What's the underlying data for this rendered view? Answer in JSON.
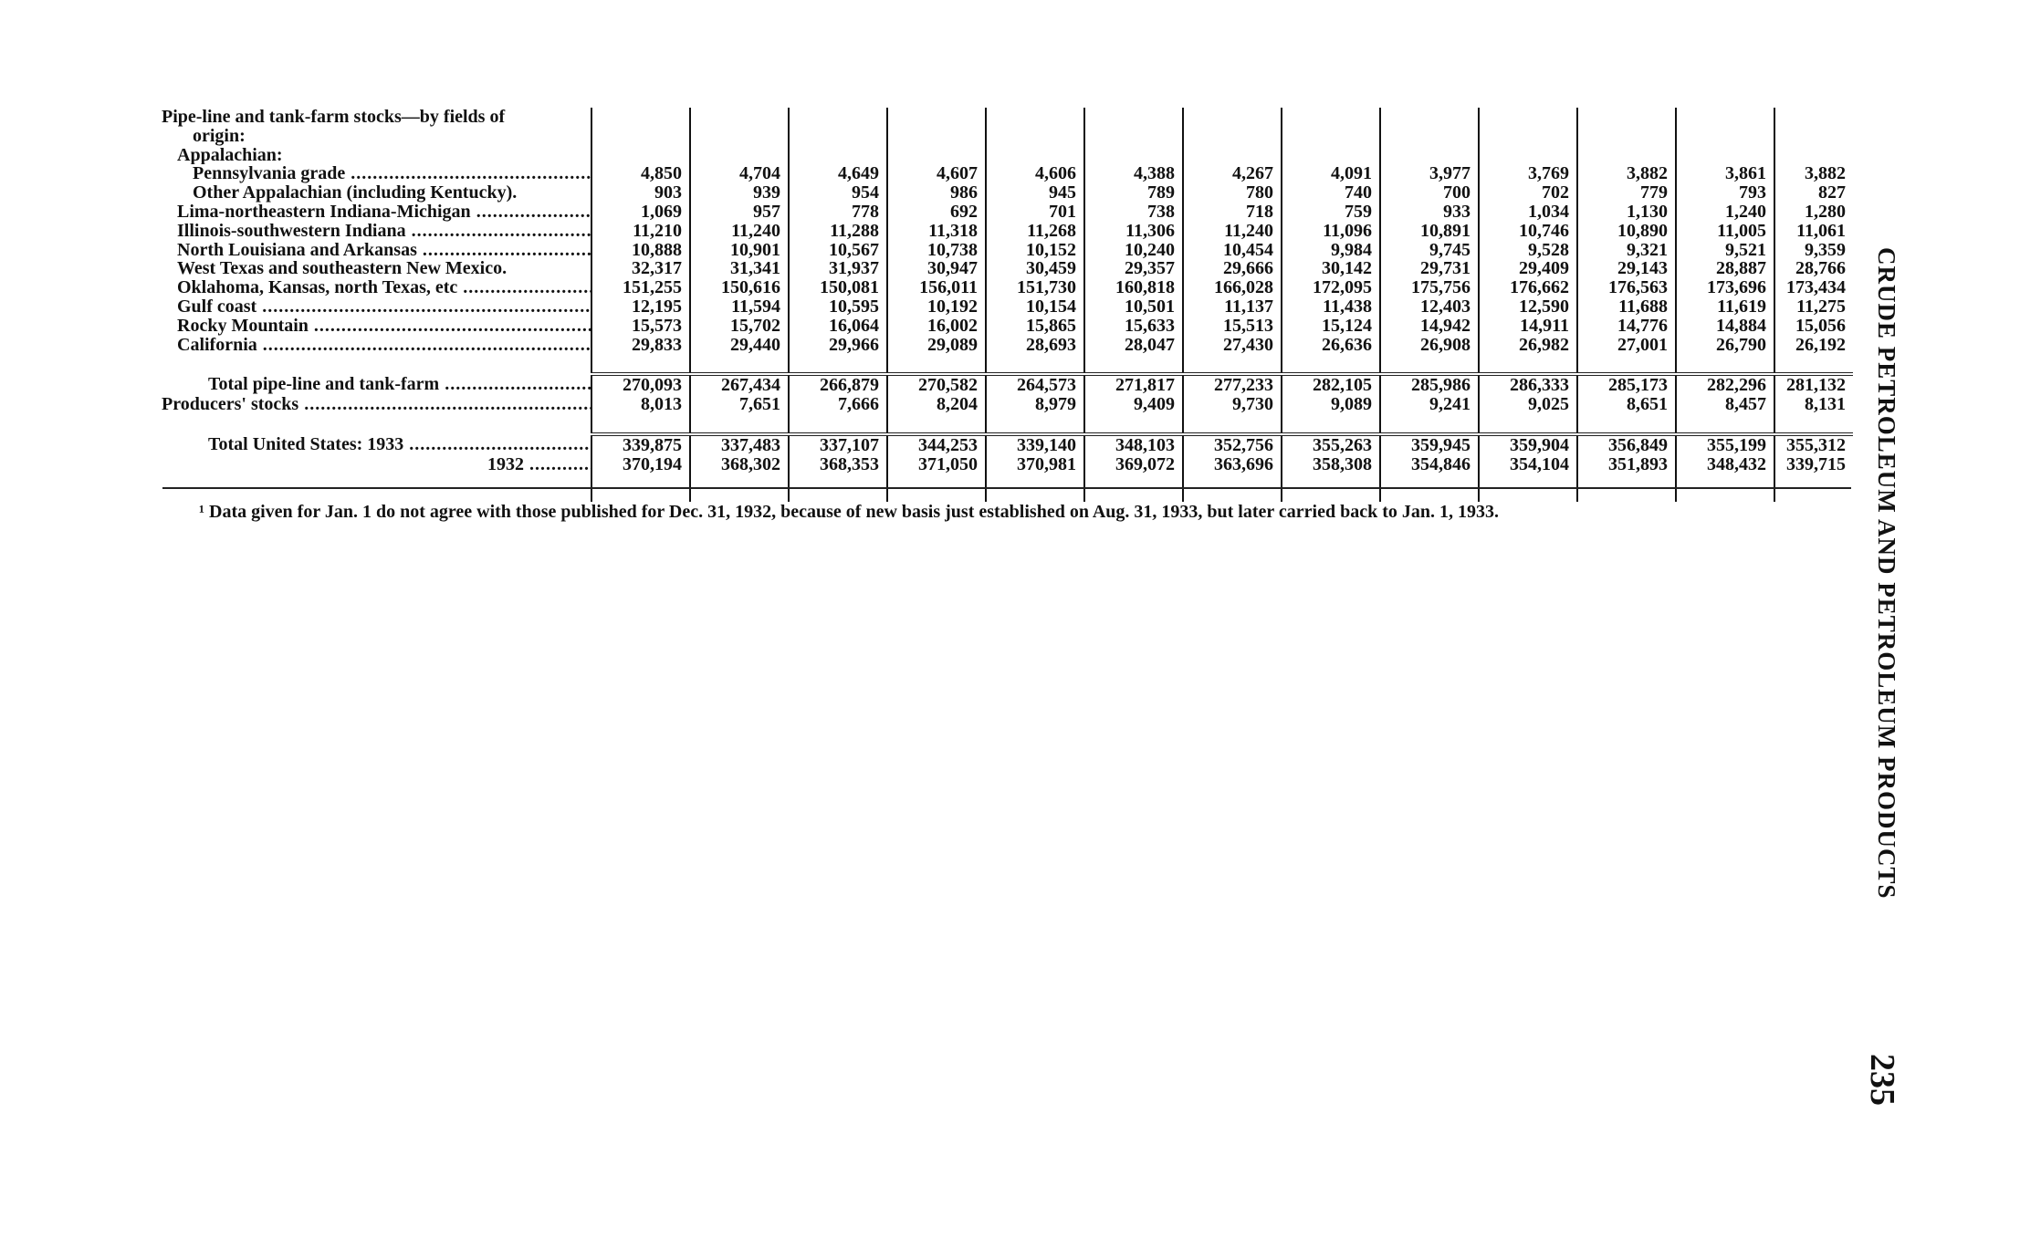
{
  "side_header": "CRUDE PETROLEUM AND PETROLEUM PRODUCTS",
  "page_number": "235",
  "table": {
    "header_rows": [
      {
        "label": "Pipe-line and tank-farm stocks—by fields of",
        "indent": 0
      },
      {
        "label": "origin:",
        "indent": 2
      },
      {
        "label": "Appalachian:",
        "indent": 1
      }
    ],
    "rows": [
      {
        "label": "Pennsylvania grade",
        "indent": 2,
        "values": [
          "4,850",
          "4,704",
          "4,649",
          "4,607",
          "4,606",
          "4,388",
          "4,267",
          "4,091",
          "3,977",
          "3,769",
          "3,882",
          "3,861",
          "3,882"
        ]
      },
      {
        "label": "Other Appalachian (including Kentucky).",
        "indent": 2,
        "values": [
          "903",
          "939",
          "954",
          "986",
          "945",
          "789",
          "780",
          "740",
          "700",
          "702",
          "779",
          "793",
          "827"
        ]
      },
      {
        "label": "Lima-northeastern Indiana-Michigan",
        "indent": 1,
        "values": [
          "1,069",
          "957",
          "778",
          "692",
          "701",
          "738",
          "718",
          "759",
          "933",
          "1,034",
          "1,130",
          "1,240",
          "1,280"
        ]
      },
      {
        "label": "Illinois-southwestern Indiana",
        "indent": 1,
        "values": [
          "11,210",
          "11,240",
          "11,288",
          "11,318",
          "11,268",
          "11,306",
          "11,240",
          "11,096",
          "10,891",
          "10,746",
          "10,890",
          "11,005",
          "11,061"
        ]
      },
      {
        "label": "North Louisiana and Arkansas",
        "indent": 1,
        "values": [
          "10,888",
          "10,901",
          "10,567",
          "10,738",
          "10,152",
          "10,240",
          "10,454",
          "9,984",
          "9,745",
          "9,528",
          "9,321",
          "9,521",
          "9,359"
        ]
      },
      {
        "label": "West Texas and southeastern New Mexico.",
        "indent": 1,
        "values": [
          "32,317",
          "31,341",
          "31,937",
          "30,947",
          "30,459",
          "29,357",
          "29,666",
          "30,142",
          "29,731",
          "29,409",
          "29,143",
          "28,887",
          "28,766"
        ]
      },
      {
        "label": "Oklahoma, Kansas, north Texas, etc",
        "indent": 1,
        "values": [
          "151,255",
          "150,616",
          "150,081",
          "156,011",
          "151,730",
          "160,818",
          "166,028",
          "172,095",
          "175,756",
          "176,662",
          "176,563",
          "173,696",
          "173,434"
        ]
      },
      {
        "label": "Gulf coast",
        "indent": 1,
        "values": [
          "12,195",
          "11,594",
          "10,595",
          "10,192",
          "10,154",
          "10,501",
          "11,137",
          "11,438",
          "12,403",
          "12,590",
          "11,688",
          "11,619",
          "11,275"
        ]
      },
      {
        "label": "Rocky Mountain",
        "indent": 1,
        "values": [
          "15,573",
          "15,702",
          "16,064",
          "16,002",
          "15,865",
          "15,633",
          "15,513",
          "15,124",
          "14,942",
          "14,911",
          "14,776",
          "14,884",
          "15,056"
        ]
      },
      {
        "label": "California",
        "indent": 1,
        "values": [
          "29,833",
          "29,440",
          "29,966",
          "29,089",
          "28,693",
          "28,047",
          "27,430",
          "26,636",
          "26,908",
          "26,982",
          "27,001",
          "26,790",
          "26,192"
        ]
      }
    ],
    "subtotal_rows": [
      {
        "label": "Total pipe-line and tank-farm",
        "indent": 3,
        "values": [
          "270,093",
          "267,434",
          "266,879",
          "270,582",
          "264,573",
          "271,817",
          "277,233",
          "282,105",
          "285,986",
          "286,333",
          "285,173",
          "282,296",
          "281,132"
        ]
      },
      {
        "label": "Producers' stocks",
        "indent": 0,
        "values": [
          "8,013",
          "7,651",
          "7,666",
          "8,204",
          "8,979",
          "9,409",
          "9,730",
          "9,089",
          "9,241",
          "9,025",
          "8,651",
          "8,457",
          "8,131"
        ]
      }
    ],
    "total_rows": [
      {
        "label": "Total United States: 1933",
        "indent": 3,
        "values": [
          "339,875",
          "337,483",
          "337,107",
          "344,253",
          "339,140",
          "348,103",
          "352,756",
          "355,263",
          "359,945",
          "359,904",
          "356,849",
          "355,199",
          "355,312"
        ]
      },
      {
        "label": "1932",
        "indent": 21,
        "values": [
          "370,194",
          "368,302",
          "368,353",
          "371,050",
          "370,981",
          "369,072",
          "363,696",
          "358,308",
          "354,846",
          "354,104",
          "351,893",
          "348,432",
          "339,715"
        ]
      }
    ]
  },
  "footnote": "¹ Data given for Jan. 1 do not agree with those published for Dec. 31, 1932, because of new basis just established on Aug. 31, 1933, but later carried back to Jan. 1, 1933."
}
